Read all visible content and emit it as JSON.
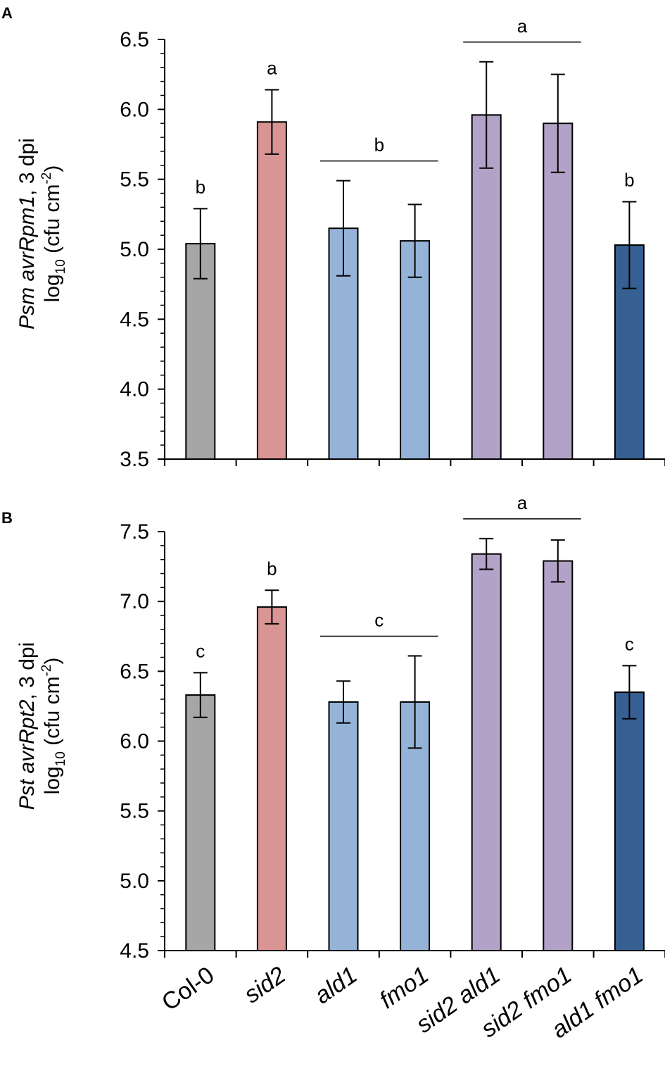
{
  "chart_data": [
    {
      "panel": "A",
      "type": "bar",
      "ylabel_line1": {
        "italic": "Psm avrRpm1",
        "plain": ", 3 dpi"
      },
      "ylabel_line2": {
        "pre": "log",
        "sub": "10",
        "mid": " (cfu cm",
        "sup": "-2",
        "post": ")"
      },
      "ylim": [
        3.5,
        6.5
      ],
      "yticks": [
        "3.5",
        "4.0",
        "4.5",
        "5.0",
        "5.5",
        "6.0",
        "6.5"
      ],
      "categories": [
        "Col-0",
        "sid2",
        "ald1",
        "fmo1",
        "sid2 ald1",
        "sid2 fmo1",
        "ald1 fmo1"
      ],
      "values": [
        5.04,
        5.91,
        5.15,
        5.06,
        5.96,
        5.9,
        5.03
      ],
      "errors": [
        0.25,
        0.23,
        0.34,
        0.26,
        0.38,
        0.35,
        0.31
      ],
      "colors": [
        "#a6a6a6",
        "#d99594",
        "#95b3d7",
        "#95b3d7",
        "#b3a2c7",
        "#b3a2c7",
        "#366092"
      ],
      "significance": [
        {
          "label": "b",
          "bars": [
            0
          ]
        },
        {
          "label": "a",
          "bars": [
            1
          ]
        },
        {
          "label": "b",
          "bars": [
            2,
            3
          ]
        },
        {
          "label": "a",
          "bars": [
            4,
            5
          ]
        },
        {
          "label": "b",
          "bars": [
            6
          ]
        }
      ]
    },
    {
      "panel": "B",
      "type": "bar",
      "ylabel_line1": {
        "italic": "Pst avrRpt2",
        "plain": ", 3 dpi"
      },
      "ylabel_line2": {
        "pre": "log",
        "sub": "10",
        "mid": " (cfu cm",
        "sup": "-2",
        "post": ")"
      },
      "ylim": [
        4.5,
        7.5
      ],
      "yticks": [
        "4.5",
        "5.0",
        "5.5",
        "6.0",
        "6.5",
        "7.0",
        "7.5"
      ],
      "categories": [
        "Col-0",
        "sid2",
        "ald1",
        "fmo1",
        "sid2 ald1",
        "sid2 fmo1",
        "ald1 fmo1"
      ],
      "values": [
        6.33,
        6.96,
        6.28,
        6.28,
        7.34,
        7.29,
        6.35
      ],
      "errors": [
        0.16,
        0.12,
        0.15,
        0.33,
        0.11,
        0.15,
        0.19
      ],
      "colors": [
        "#a6a6a6",
        "#d99594",
        "#95b3d7",
        "#95b3d7",
        "#b3a2c7",
        "#b3a2c7",
        "#366092"
      ],
      "significance": [
        {
          "label": "c",
          "bars": [
            0
          ]
        },
        {
          "label": "b",
          "bars": [
            1
          ]
        },
        {
          "label": "c",
          "bars": [
            2,
            3
          ]
        },
        {
          "label": "a",
          "bars": [
            4,
            5
          ]
        },
        {
          "label": "c",
          "bars": [
            6
          ]
        }
      ]
    }
  ]
}
